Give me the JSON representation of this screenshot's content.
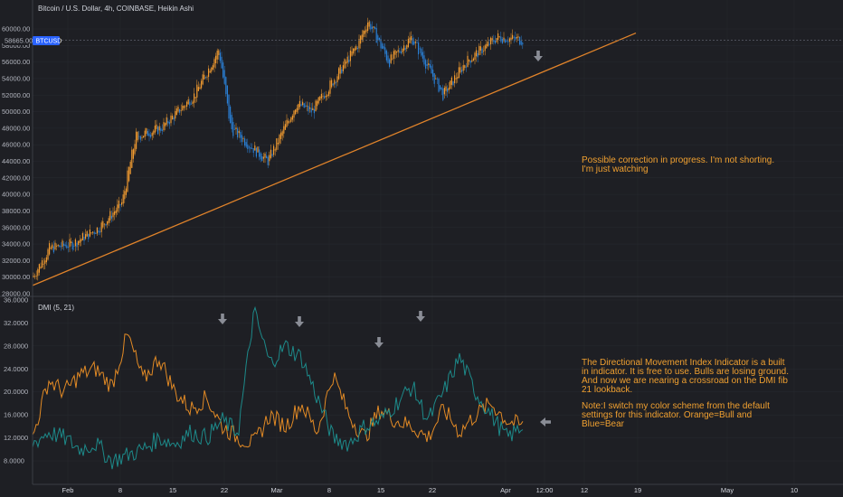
{
  "header": {
    "title": "Bitcoin / U.S. Dollar, 4h, COINBASE, Heikin Ashi",
    "price_badge": "58665.00",
    "symbol_badge": "BTCUSD"
  },
  "indicator": {
    "label": "DMI (5, 21)"
  },
  "annotations": {
    "price_note": [
      "Possible correction in  progress. I'm not shorting.",
      "I'm just watching"
    ],
    "dmi_note": [
      "The Directional Movement Index Indicator is a built",
      "in indicator. It is free to use. Bulls are losing ground.",
      "And now we are nearing a crossroad on the DMI fib",
      "21 lookback.",
      "",
      "Note:I switch my color scheme from the default",
      "settings for this indicator. Orange=Bull and",
      "Blue=Bear"
    ]
  },
  "colors": {
    "background": "#1e1f24",
    "bull": "#f09a30",
    "bear": "#2a7fd4",
    "dmi_bull": "#e28a25",
    "dmi_bear": "#1d8a8a",
    "trendline": "#e0832a",
    "arrow": "#8a8d96",
    "note": "#f0a030",
    "badge": "#2962ff"
  },
  "chart_data": [
    {
      "type": "candlestick",
      "title": "Bitcoin / U.S. Dollar, 4h, COINBASE, Heikin Ashi",
      "y_ticks": [
        "60000.00",
        "58000.00",
        "56000.00",
        "54000.00",
        "52000.00",
        "50000.00",
        "48000.00",
        "46000.00",
        "44000.00",
        "42000.00",
        "40000.00",
        "38000.00",
        "36000.00",
        "34000.00",
        "32000.00",
        "30000.00",
        "28000.00"
      ],
      "ylim": [
        28000,
        62000
      ],
      "x_ticks": [
        "Feb",
        "8",
        "15",
        "22",
        "Mar",
        "8",
        "15",
        "22",
        "Apr",
        "12:00",
        "12",
        "19",
        "May",
        "10"
      ],
      "close_approx": [
        {
          "x": "Jan 23",
          "y": 30000
        },
        {
          "x": "Jan 26",
          "y": 33500
        },
        {
          "x": "Jan 30",
          "y": 34000
        },
        {
          "x": "Feb 3",
          "y": 36000
        },
        {
          "x": "Feb 7",
          "y": 39000
        },
        {
          "x": "Feb 9",
          "y": 47000
        },
        {
          "x": "Feb 14",
          "y": 48000
        },
        {
          "x": "Feb 18",
          "y": 52000
        },
        {
          "x": "Feb 21",
          "y": 57500
        },
        {
          "x": "Feb 23",
          "y": 48000
        },
        {
          "x": "Feb 28",
          "y": 44000
        },
        {
          "x": "Mar 4",
          "y": 51000
        },
        {
          "x": "Mar 8",
          "y": 50000
        },
        {
          "x": "Mar 13",
          "y": 58000
        },
        {
          "x": "Mar 14",
          "y": 61000
        },
        {
          "x": "Mar 17",
          "y": 56000
        },
        {
          "x": "Mar 20",
          "y": 59000
        },
        {
          "x": "Mar 25",
          "y": 52000
        },
        {
          "x": "Mar 28",
          "y": 56000
        },
        {
          "x": "Apr 1",
          "y": 59000
        },
        {
          "x": "Apr 3",
          "y": 58665
        }
      ],
      "current_price": 58665.0,
      "trendline": [
        {
          "x": "Jan 22",
          "y": 29000
        },
        {
          "x": "Apr 19",
          "y": 59500
        }
      ]
    },
    {
      "type": "line",
      "title": "DMI (5, 21)",
      "y_ticks": [
        "36.0000",
        "32.0000",
        "28.0000",
        "24.0000",
        "20.0000",
        "16.0000",
        "12.0000",
        "8.0000"
      ],
      "ylim": [
        5,
        36
      ],
      "series": [
        {
          "values": [
            12,
            22,
            20,
            23,
            24,
            21,
            30,
            22,
            26,
            20,
            17,
            19,
            14,
            12,
            11,
            16,
            14,
            18,
            13,
            23,
            16,
            12,
            17,
            15,
            14,
            12,
            17,
            13,
            16,
            18,
            15,
            14
          ]
        },
        {
          "values": [
            11,
            13,
            12,
            10,
            11,
            8,
            9,
            10,
            12,
            11,
            13,
            12,
            15,
            13,
            34,
            25,
            28,
            26,
            19,
            12,
            11,
            14,
            15,
            18,
            21,
            15,
            20,
            26,
            20,
            16,
            12,
            14
          ]
        }
      ]
    }
  ]
}
